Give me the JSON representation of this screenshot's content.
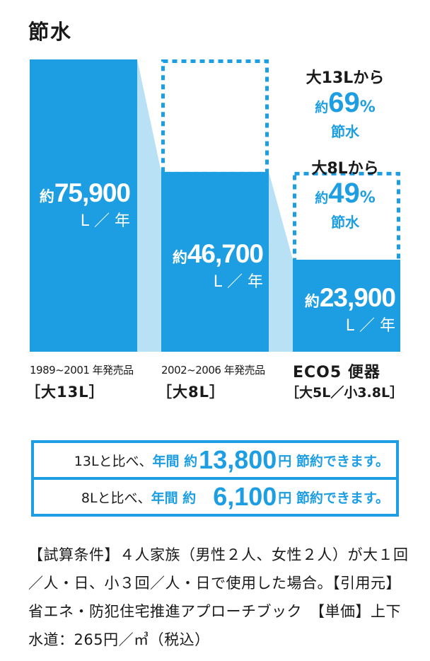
{
  "title": "節水",
  "colors": {
    "accent": "#1d9ee3",
    "light": "#b9e1f5",
    "text": "#1a1a1a"
  },
  "chart_data": {
    "type": "bar",
    "categories": [
      "1989~2001 年発売品 [大13L]",
      "2002~2006 年発売品 [大8L]",
      "ECO5 便器 [大5L/小3.8L]"
    ],
    "values": [
      75900,
      46700,
      23900
    ],
    "unit": "L／年",
    "bars": [
      {
        "prefix": "約",
        "value_label": "75,900",
        "unit_label": "L ／ 年",
        "caption_top": "1989~2001 年発売品",
        "caption_bottom": "［大13L］"
      },
      {
        "prefix": "約",
        "value_label": "46,700",
        "unit_label": "L ／ 年",
        "caption_top": "2002~2006 年発売品",
        "caption_bottom": "［大8L］"
      },
      {
        "prefix": "約",
        "value_label": "23,900",
        "unit_label": "L ／ 年",
        "caption_top": "ECO5 便器",
        "caption_bottom": "［大5L／小3.8L］"
      }
    ],
    "savings": [
      {
        "from": "大13Lから",
        "prefix": "約",
        "percent": "69",
        "sign": "%",
        "suffix": "節水",
        "value": 69
      },
      {
        "from": "大8Lから",
        "prefix": "約",
        "percent": "49",
        "sign": "%",
        "suffix": "節水",
        "value": 49
      }
    ]
  },
  "summary": [
    {
      "lead": "13Lと比べ、",
      "mid": "年間 約 ",
      "amount": "13,800",
      "tail": "円 節約できます。"
    },
    {
      "lead": "8Lと比べ、",
      "mid": "年間 約 ",
      "amount": "6,100",
      "tail": "円 節約できます。"
    }
  ],
  "note": "【試算条件】４人家族（男性２人、女性２人）が大１回／人・日、小３回／人・日で使用した場合。【引用元】省エネ・防犯住宅推進アプローチブック　【単価】上下水道：265円／㎥（税込）"
}
